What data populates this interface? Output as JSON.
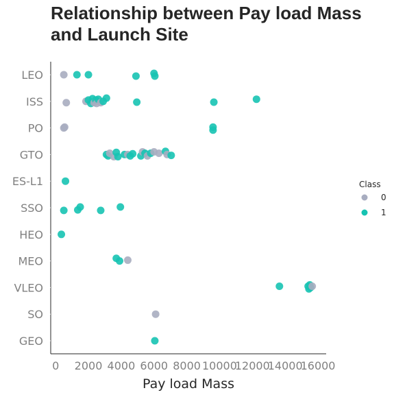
{
  "chart_data": {
    "type": "scatter",
    "title": "Relationship between Pay load Mass and Launch Site",
    "xlabel": "Pay load Mass",
    "ylabel": "",
    "xlim": [
      -300,
      16500
    ],
    "xticks": [
      0,
      2000,
      4000,
      6000,
      8000,
      10000,
      12000,
      14000,
      16000
    ],
    "categories": [
      "LEO",
      "ISS",
      "PO",
      "GTO",
      "ES-L1",
      "SSO",
      "HEO",
      "MEO",
      "VLEO",
      "SO",
      "GEO"
    ],
    "legend": {
      "title": "Class",
      "placement": "right",
      "entries": [
        "0",
        "1"
      ]
    },
    "colors": {
      "0": "#a8adc0",
      "1": "#17c3b2"
    },
    "grid": false,
    "points": [
      {
        "orbit": "LEO",
        "x": 500,
        "class": 0,
        "jitter": 0.0
      },
      {
        "orbit": "LEO",
        "x": 1300,
        "class": 1,
        "jitter": 0.0
      },
      {
        "orbit": "LEO",
        "x": 2000,
        "class": 1,
        "jitter": 0.0
      },
      {
        "orbit": "LEO",
        "x": 4900,
        "class": 1,
        "jitter": 0.05
      },
      {
        "orbit": "LEO",
        "x": 6000,
        "class": 1,
        "jitter": -0.05
      },
      {
        "orbit": "LEO",
        "x": 6050,
        "class": 1,
        "jitter": 0.05
      },
      {
        "orbit": "ISS",
        "x": 650,
        "class": 0,
        "jitter": 0.05
      },
      {
        "orbit": "ISS",
        "x": 1850,
        "class": 0,
        "jitter": 0.0
      },
      {
        "orbit": "ISS",
        "x": 2000,
        "class": 1,
        "jitter": -0.05
      },
      {
        "orbit": "ISS",
        "x": 2150,
        "class": 1,
        "jitter": 0.08
      },
      {
        "orbit": "ISS",
        "x": 2250,
        "class": 1,
        "jitter": -0.1
      },
      {
        "orbit": "ISS",
        "x": 2350,
        "class": 0,
        "jitter": 0.05
      },
      {
        "orbit": "ISS",
        "x": 2450,
        "class": 1,
        "jitter": -0.05
      },
      {
        "orbit": "ISS",
        "x": 2500,
        "class": 0,
        "jitter": 0.08
      },
      {
        "orbit": "ISS",
        "x": 2600,
        "class": 1,
        "jitter": -0.08
      },
      {
        "orbit": "ISS",
        "x": 2750,
        "class": 0,
        "jitter": 0.05
      },
      {
        "orbit": "ISS",
        "x": 2900,
        "class": 1,
        "jitter": 0.0
      },
      {
        "orbit": "ISS",
        "x": 3100,
        "class": 1,
        "jitter": -0.12
      },
      {
        "orbit": "ISS",
        "x": 4950,
        "class": 1,
        "jitter": 0.03
      },
      {
        "orbit": "ISS",
        "x": 9650,
        "class": 1,
        "jitter": 0.03
      },
      {
        "orbit": "ISS",
        "x": 12250,
        "class": 1,
        "jitter": -0.08
      },
      {
        "orbit": "PO",
        "x": 500,
        "class": 0,
        "jitter": 0.0
      },
      {
        "orbit": "PO",
        "x": 550,
        "class": 0,
        "jitter": -0.03
      },
      {
        "orbit": "PO",
        "x": 9600,
        "class": 1,
        "jitter": -0.03
      },
      {
        "orbit": "PO",
        "x": 9600,
        "class": 1,
        "jitter": 0.08
      },
      {
        "orbit": "GTO",
        "x": 3100,
        "class": 1,
        "jitter": 0.0
      },
      {
        "orbit": "GTO",
        "x": 3200,
        "class": 1,
        "jitter": 0.05
      },
      {
        "orbit": "GTO",
        "x": 3300,
        "class": 0,
        "jitter": -0.05
      },
      {
        "orbit": "GTO",
        "x": 3550,
        "class": 0,
        "jitter": 0.08
      },
      {
        "orbit": "GTO",
        "x": 3700,
        "class": 1,
        "jitter": -0.08
      },
      {
        "orbit": "GTO",
        "x": 3800,
        "class": 1,
        "jitter": 0.08
      },
      {
        "orbit": "GTO",
        "x": 4200,
        "class": 1,
        "jitter": 0.0
      },
      {
        "orbit": "GTO",
        "x": 4400,
        "class": 0,
        "jitter": 0.0
      },
      {
        "orbit": "GTO",
        "x": 4550,
        "class": 1,
        "jitter": 0.05
      },
      {
        "orbit": "GTO",
        "x": 4700,
        "class": 1,
        "jitter": -0.03
      },
      {
        "orbit": "GTO",
        "x": 5200,
        "class": 1,
        "jitter": 0.05
      },
      {
        "orbit": "GTO",
        "x": 5300,
        "class": 0,
        "jitter": -0.1
      },
      {
        "orbit": "GTO",
        "x": 5450,
        "class": 1,
        "jitter": -0.05
      },
      {
        "orbit": "GTO",
        "x": 5600,
        "class": 0,
        "jitter": 0.05
      },
      {
        "orbit": "GTO",
        "x": 5800,
        "class": 1,
        "jitter": -0.05
      },
      {
        "orbit": "GTO",
        "x": 6000,
        "class": 0,
        "jitter": -0.1
      },
      {
        "orbit": "GTO",
        "x": 6300,
        "class": 0,
        "jitter": -0.05
      },
      {
        "orbit": "GTO",
        "x": 6700,
        "class": 1,
        "jitter": -0.12
      },
      {
        "orbit": "GTO",
        "x": 6800,
        "class": 0,
        "jitter": 0.0
      },
      {
        "orbit": "GTO",
        "x": 7050,
        "class": 1,
        "jitter": 0.03
      },
      {
        "orbit": "ES-L1",
        "x": 600,
        "class": 1,
        "jitter": 0.0
      },
      {
        "orbit": "SSO",
        "x": 500,
        "class": 1,
        "jitter": 0.1
      },
      {
        "orbit": "SSO",
        "x": 1350,
        "class": 1,
        "jitter": 0.08
      },
      {
        "orbit": "SSO",
        "x": 1500,
        "class": 1,
        "jitter": -0.03
      },
      {
        "orbit": "SSO",
        "x": 2750,
        "class": 1,
        "jitter": 0.1
      },
      {
        "orbit": "SSO",
        "x": 3950,
        "class": 1,
        "jitter": -0.03
      },
      {
        "orbit": "HEO",
        "x": 350,
        "class": 1,
        "jitter": 0.0
      },
      {
        "orbit": "MEO",
        "x": 3700,
        "class": 1,
        "jitter": -0.1
      },
      {
        "orbit": "MEO",
        "x": 3900,
        "class": 1,
        "jitter": 0.0
      },
      {
        "orbit": "MEO",
        "x": 4400,
        "class": 0,
        "jitter": -0.03
      },
      {
        "orbit": "VLEO",
        "x": 13650,
        "class": 1,
        "jitter": -0.05
      },
      {
        "orbit": "VLEO",
        "x": 15400,
        "class": 1,
        "jitter": -0.05
      },
      {
        "orbit": "VLEO",
        "x": 15450,
        "class": 1,
        "jitter": 0.05
      },
      {
        "orbit": "VLEO",
        "x": 15500,
        "class": 1,
        "jitter": -0.1
      },
      {
        "orbit": "VLEO",
        "x": 15550,
        "class": 1,
        "jitter": 0.0
      },
      {
        "orbit": "VLEO",
        "x": 15650,
        "class": 0,
        "jitter": -0.05
      },
      {
        "orbit": "SO",
        "x": 6100,
        "class": 0,
        "jitter": 0.0
      },
      {
        "orbit": "GEO",
        "x": 6050,
        "class": 1,
        "jitter": 0.0
      }
    ]
  }
}
